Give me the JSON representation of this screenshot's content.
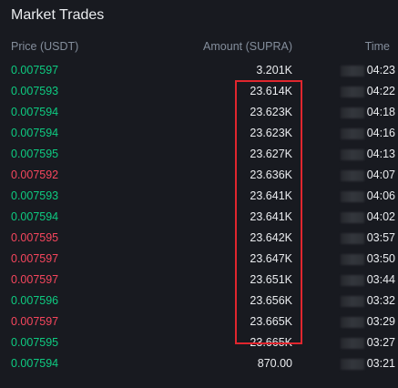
{
  "panel": {
    "title": "Market Trades",
    "columns": {
      "price": "Price (USDT)",
      "amount": "Amount (SUPRA)",
      "time": "Time"
    }
  },
  "trades": [
    {
      "price": "0.007597",
      "amount": "3.201K",
      "time": "04:23",
      "side": "buy"
    },
    {
      "price": "0.007593",
      "amount": "23.614K",
      "time": "04:22",
      "side": "buy"
    },
    {
      "price": "0.007594",
      "amount": "23.623K",
      "time": "04:18",
      "side": "buy"
    },
    {
      "price": "0.007594",
      "amount": "23.623K",
      "time": "04:16",
      "side": "buy"
    },
    {
      "price": "0.007595",
      "amount": "23.627K",
      "time": "04:13",
      "side": "buy"
    },
    {
      "price": "0.007592",
      "amount": "23.636K",
      "time": "04:07",
      "side": "sell"
    },
    {
      "price": "0.007593",
      "amount": "23.641K",
      "time": "04:06",
      "side": "buy"
    },
    {
      "price": "0.007594",
      "amount": "23.641K",
      "time": "04:02",
      "side": "buy"
    },
    {
      "price": "0.007595",
      "amount": "23.642K",
      "time": "03:57",
      "side": "sell"
    },
    {
      "price": "0.007597",
      "amount": "23.647K",
      "time": "03:50",
      "side": "sell"
    },
    {
      "price": "0.007597",
      "amount": "23.651K",
      "time": "03:44",
      "side": "sell"
    },
    {
      "price": "0.007596",
      "amount": "23.656K",
      "time": "03:32",
      "side": "buy"
    },
    {
      "price": "0.007597",
      "amount": "23.665K",
      "time": "03:29",
      "side": "sell"
    },
    {
      "price": "0.007595",
      "amount": "23.665K",
      "time": "03:27",
      "side": "buy"
    },
    {
      "price": "0.007594",
      "amount": "870.00",
      "time": "03:21",
      "side": "buy"
    }
  ],
  "colors": {
    "background": "#181a20",
    "buy": "#0ecb81",
    "sell": "#f6465d",
    "header_text": "#848e9c",
    "primary_text": "#eaecef",
    "highlight_border": "#e0262e"
  }
}
